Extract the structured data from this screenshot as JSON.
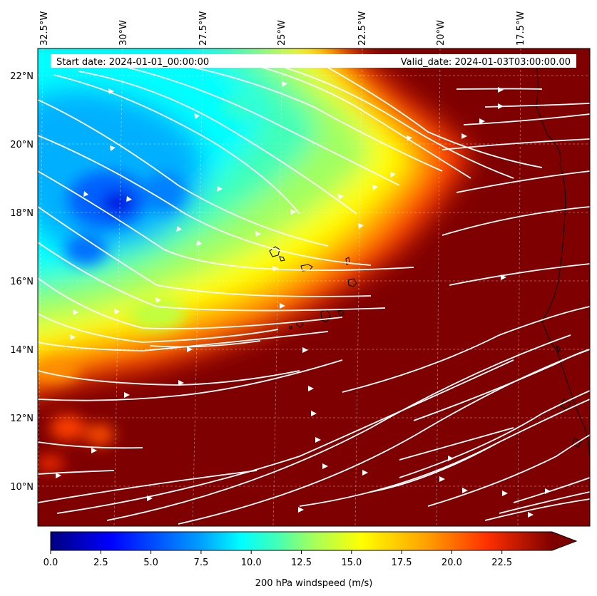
{
  "header": {
    "start_date": "Start date: 2024-01-01_00:00:00",
    "valid_date": "Valid_date: 2024-01-03T03:00:00.00"
  },
  "longitude_labels": [
    "32.5°W",
    "30°W",
    "27.5°W",
    "25°W",
    "22.5°W",
    "20°W",
    "17.5°W"
  ],
  "latitude_labels": [
    "22°N",
    "20°N",
    "18°N",
    "16°N",
    "14°N",
    "12°N",
    "10°N"
  ],
  "colorbar": {
    "label": "200 hPa windspeed (m/s)",
    "ticks": [
      "0.0",
      "2.5",
      "5.0",
      "7.5",
      "10.0",
      "12.5",
      "15.0",
      "17.5",
      "20.0",
      "22.5"
    ],
    "min": 0,
    "max": 25,
    "extend": "max"
  },
  "map": {
    "field": "200 hPa windspeed",
    "units": "m/s",
    "colormap": "jet",
    "overlay": "white streamlines",
    "gridlines": "dashed",
    "coastlines": "black"
  }
}
